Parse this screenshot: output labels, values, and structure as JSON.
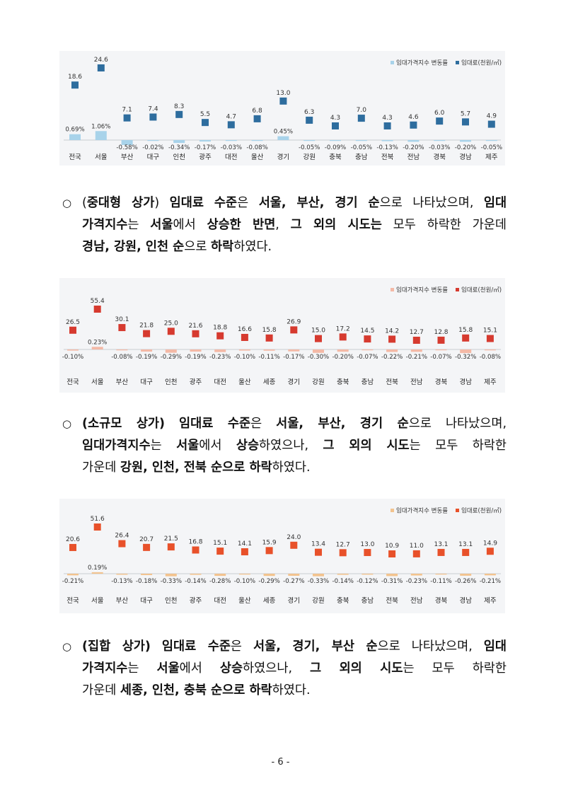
{
  "charts": [
    {
      "id": "chart-1",
      "chart_data": {
        "type": "bar+scatter",
        "categories": [
          "전국",
          "서울",
          "부산",
          "대구",
          "인천",
          "광주",
          "대전",
          "울산",
          "경기",
          "강원",
          "충북",
          "충남",
          "전북",
          "전남",
          "경북",
          "경남",
          "제주"
        ],
        "legend": [
          "임대가격지수 변동률",
          "임대료(천원/㎡)"
        ],
        "legend_position": "top-right",
        "rent": [
          18.6,
          24.6,
          7.1,
          7.4,
          8.3,
          5.5,
          4.7,
          6.8,
          13.0,
          6.3,
          4.3,
          7.0,
          4.3,
          4.6,
          6.0,
          5.7,
          4.9
        ],
        "rent_labels": [
          "18.6",
          "24.6",
          "7.1",
          "7.4",
          "8.3",
          "5.5",
          "4.7",
          "6.8",
          "13.0",
          "6.3",
          "4.3",
          "7.0",
          "4.3",
          "4.6",
          "6.0",
          "5.7",
          "4.9"
        ],
        "change": [
          0.69,
          1.06,
          -0.58,
          -0.02,
          -0.34,
          -0.17,
          -0.03,
          -0.08,
          0.45,
          -0.05,
          -0.09,
          -0.05,
          -0.13,
          -0.2,
          -0.03,
          -0.2,
          -0.05
        ],
        "change_labels": [
          "0.69%",
          "1.06%",
          "-0.58%",
          "-0.02%",
          "-0.34%",
          "-0.17%",
          "-0.03%",
          "-0.08%",
          "0.45%",
          "-0.05%",
          "-0.09%",
          "-0.05%",
          "-0.13%",
          "-0.20%",
          "-0.03%",
          "-0.20%",
          "-0.05%"
        ],
        "marker_color": "#2e6d9e",
        "bar_color": "#a8d3ea"
      }
    },
    {
      "id": "chart-2",
      "chart_data": {
        "type": "bar+scatter",
        "categories": [
          "전국",
          "서울",
          "부산",
          "대구",
          "인천",
          "광주",
          "대전",
          "울산",
          "세종",
          "경기",
          "강원",
          "충북",
          "충남",
          "전북",
          "전남",
          "경북",
          "경남",
          "제주"
        ],
        "legend": [
          "임대가격지수 변동률",
          "임대료(천원/㎡)"
        ],
        "legend_position": "top-right",
        "rent": [
          26.5,
          55.4,
          30.1,
          21.8,
          25.0,
          21.6,
          18.8,
          16.6,
          15.8,
          26.9,
          15.0,
          17.2,
          14.5,
          14.2,
          12.7,
          12.8,
          15.8,
          15.1
        ],
        "rent_labels": [
          "26.5",
          "55.4",
          "30.1",
          "21.8",
          "25.0",
          "21.6",
          "18.8",
          "16.6",
          "15.8",
          "26.9",
          "15.0",
          "17.2",
          "14.5",
          "14.2",
          "12.7",
          "12.8",
          "15.8",
          "15.1"
        ],
        "change": [
          -0.1,
          0.23,
          -0.08,
          -0.19,
          -0.29,
          -0.19,
          -0.23,
          -0.1,
          -0.11,
          -0.17,
          -0.3,
          -0.2,
          -0.07,
          -0.22,
          -0.21,
          -0.07,
          -0.32,
          -0.08
        ],
        "change_labels": [
          "-0.10%",
          "0.23%",
          "-0.08%",
          "-0.19%",
          "-0.29%",
          "-0.19%",
          "-0.23%",
          "-0.10%",
          "-0.11%",
          "-0.17%",
          "-0.30%",
          "-0.20%",
          "-0.07%",
          "-0.22%",
          "-0.21%",
          "-0.07%",
          "-0.32%",
          "-0.08%"
        ],
        "marker_color": "#d63a2f",
        "bar_color": "#f4b9a6"
      }
    },
    {
      "id": "chart-3",
      "chart_data": {
        "type": "bar+scatter",
        "categories": [
          "전국",
          "서울",
          "부산",
          "대구",
          "인천",
          "광주",
          "대전",
          "울산",
          "세종",
          "경기",
          "강원",
          "충북",
          "충남",
          "전북",
          "전남",
          "경북",
          "경남",
          "제주"
        ],
        "legend": [
          "임대가격지수 변동률",
          "임대료(천원/㎡)"
        ],
        "legend_position": "top-right",
        "rent": [
          20.6,
          51.6,
          26.4,
          20.7,
          21.5,
          16.8,
          15.1,
          14.1,
          15.9,
          24.0,
          13.4,
          12.7,
          13.0,
          10.9,
          11.0,
          13.1,
          13.1,
          14.9
        ],
        "rent_labels": [
          "20.6",
          "51.6",
          "26.4",
          "20.7",
          "21.5",
          "16.8",
          "15.1",
          "14.1",
          "15.9",
          "24.0",
          "13.4",
          "12.7",
          "13.0",
          "10.9",
          "11.0",
          "13.1",
          "13.1",
          "14.9"
        ],
        "change": [
          -0.21,
          0.19,
          -0.13,
          -0.18,
          -0.33,
          -0.14,
          -0.28,
          -0.1,
          -0.29,
          -0.27,
          -0.33,
          -0.14,
          -0.12,
          -0.31,
          -0.23,
          -0.11,
          -0.26,
          -0.21
        ],
        "change_labels": [
          "-0.21%",
          "0.19%",
          "-0.13%",
          "-0.18%",
          "-0.33%",
          "-0.14%",
          "-0.28%",
          "-0.10%",
          "-0.29%",
          "-0.27%",
          "-0.33%",
          "-0.14%",
          "-0.12%",
          "-0.31%",
          "-0.23%",
          "-0.11%",
          "-0.26%",
          "-0.21%"
        ],
        "marker_color": "#e8512a",
        "bar_color": "#f2c38e"
      }
    }
  ],
  "paragraphs": [
    {
      "bullet": "○",
      "lines": [
        [
          {
            "t": "(",
            "b": false
          },
          {
            "t": "중대형 상가",
            "b": true
          },
          {
            "t": ") ",
            "b": false
          },
          {
            "t": "임대료 수준",
            "b": true
          },
          {
            "t": "은 ",
            "b": false
          },
          {
            "t": "서울, 부산, 경기 순",
            "b": true
          },
          {
            "t": "으로 나타났으며, ",
            "b": false
          },
          {
            "t": "임대",
            "b": true
          }
        ],
        [
          {
            "t": "가격지수",
            "b": true
          },
          {
            "t": "는 ",
            "b": false
          },
          {
            "t": "서울",
            "b": true
          },
          {
            "t": "에서 ",
            "b": false
          },
          {
            "t": "상승한 반면",
            "b": true
          },
          {
            "t": ", ",
            "b": false
          },
          {
            "t": "그 외의 시도는",
            "b": true
          },
          {
            "t": " 모두 하락한 가운데",
            "b": false
          }
        ],
        [
          {
            "t": "경남, 강원, 인천 순",
            "b": true
          },
          {
            "t": "으로 ",
            "b": false
          },
          {
            "t": "하락",
            "b": true
          },
          {
            "t": "하였다.",
            "b": false
          }
        ]
      ]
    },
    {
      "bullet": "○",
      "lines": [
        [
          {
            "t": "(소규모 상가)",
            "b": true
          },
          {
            "t": " ",
            "b": false
          },
          {
            "t": "임대료 수준",
            "b": true
          },
          {
            "t": "은 ",
            "b": false
          },
          {
            "t": "서울, 부산, 경기 순",
            "b": true
          },
          {
            "t": "으로 나타났으며,",
            "b": false
          }
        ],
        [
          {
            "t": "임대가격지수",
            "b": true
          },
          {
            "t": "는 ",
            "b": false
          },
          {
            "t": "서울",
            "b": true
          },
          {
            "t": "에서 ",
            "b": false
          },
          {
            "t": "상승",
            "b": true
          },
          {
            "t": "하였으나, ",
            "b": false
          },
          {
            "t": "그 외의 시도",
            "b": true
          },
          {
            "t": "는 모두 하락한",
            "b": false
          }
        ],
        [
          {
            "t": "가운데 ",
            "b": false
          },
          {
            "t": "강원, 인천, 전북 순으로 하락",
            "b": true
          },
          {
            "t": "하였다.",
            "b": false
          }
        ]
      ]
    },
    {
      "bullet": "○",
      "lines": [
        [
          {
            "t": "(집합 상가)",
            "b": true
          },
          {
            "t": " ",
            "b": false
          },
          {
            "t": "임대료 수준",
            "b": true
          },
          {
            "t": "은 ",
            "b": false
          },
          {
            "t": "서울, 경기, 부산 순",
            "b": true
          },
          {
            "t": "으로 나타났으며, ",
            "b": false
          },
          {
            "t": "임대",
            "b": true
          }
        ],
        [
          {
            "t": "가격지수",
            "b": true
          },
          {
            "t": "는 ",
            "b": false
          },
          {
            "t": "서울",
            "b": true
          },
          {
            "t": "에서 ",
            "b": false
          },
          {
            "t": "상승",
            "b": true
          },
          {
            "t": "하였으나, ",
            "b": false
          },
          {
            "t": "그 외의 시도",
            "b": true
          },
          {
            "t": "는 모두 하락한",
            "b": false
          }
        ],
        [
          {
            "t": "가운데 ",
            "b": false
          },
          {
            "t": "세종, 인천, 충북 순으로 하락",
            "b": true
          },
          {
            "t": "하였다.",
            "b": false
          }
        ]
      ]
    }
  ],
  "page_number": "- 6 -"
}
